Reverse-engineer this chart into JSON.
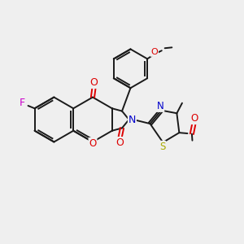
{
  "background_color": "#efefef",
  "bond_color": "#1a1a1a",
  "atom_colors": {
    "F": "#cc00cc",
    "O": "#dd0000",
    "N": "#0000cc",
    "S": "#aaaa00",
    "C": "#1a1a1a"
  },
  "figsize": [
    3.0,
    3.0
  ],
  "dpi": 100
}
